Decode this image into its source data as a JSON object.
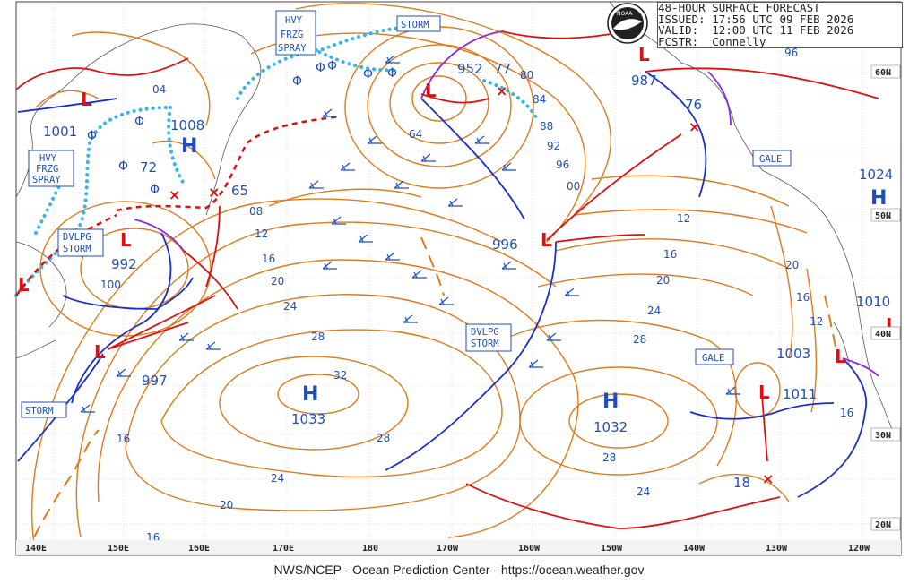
{
  "header": {
    "line1": "48-HOUR SURFACE FORECAST",
    "line2": "ISSUED: 17:56 UTC 09 FEB 2026",
    "line3": "VALID:  12:00 UTC 11 FEB 2026",
    "line4": "FCSTR:  Connelly",
    "logo": "NOAA"
  },
  "footer": "NWS/NCEP - Ocean Prediction Center - https://ocean.weather.gov",
  "lon_labels": [
    "140E",
    "150E",
    "160E",
    "170E",
    "180",
    "170W",
    "160W",
    "150W",
    "140W",
    "130W",
    "120W"
  ],
  "lat_labels": [
    "60N",
    "50N",
    "40N",
    "30N",
    "20N"
  ],
  "pressure_centers": [
    {
      "type": "H",
      "value": "1008"
    },
    {
      "type": "H",
      "value": "1033"
    },
    {
      "type": "H",
      "value": "1032"
    },
    {
      "type": "H",
      "value": "1024"
    },
    {
      "type": "L",
      "value": "952"
    },
    {
      "type": "L",
      "value": "1001"
    },
    {
      "type": "L",
      "value": "992"
    },
    {
      "type": "L",
      "value": "997"
    },
    {
      "type": "L",
      "value": "996"
    },
    {
      "type": "L",
      "value": "987"
    },
    {
      "type": "L",
      "value": "1003"
    },
    {
      "type": "L",
      "value": "1011"
    },
    {
      "type": "L",
      "value": "1010"
    }
  ],
  "forecast_positions": [
    "77",
    "72",
    "65",
    "76",
    "18"
  ],
  "warning_boxes": {
    "hvy1": [
      "HVY",
      "FRZG",
      "SPRAY"
    ],
    "hvy2": [
      "HVY",
      "FRZG",
      "SPRAY"
    ],
    "storm1": "STORM",
    "storm2": "STORM",
    "dvlpg1": [
      "DVLPG",
      "STORM"
    ],
    "dvlpg2": [
      "DVLPG",
      "STORM"
    ],
    "gale1": "GALE",
    "gale2": "GALE"
  },
  "isobar_labels": [
    "04",
    "08",
    "12",
    "16",
    "20",
    "24",
    "28",
    "32",
    "28",
    "24",
    "20",
    "16",
    "64",
    "80",
    "84",
    "88",
    "92",
    "96",
    "00",
    "12",
    "16",
    "20",
    "24",
    "28",
    "28",
    "24",
    "16",
    "12",
    "20",
    "16",
    "96",
    "100",
    "16"
  ],
  "colors": {
    "isobar": "#e07a1a",
    "cold_front": "#1a2ecf",
    "warm_front": "#e01010",
    "occluded": "#8a2be2",
    "ice_accretion": "#35b6e6",
    "label_blue": "#1f4fbf"
  }
}
